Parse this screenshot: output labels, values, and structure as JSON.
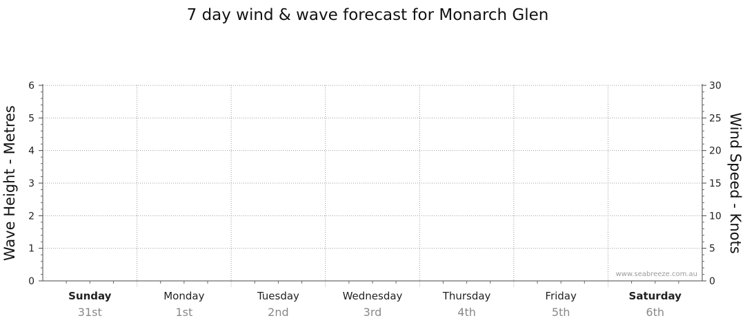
{
  "chart_data": {
    "type": "line",
    "title": "7 day wind & wave forecast for Monarch Glen",
    "ylabel_left": "Wave Height - Metres",
    "ylabel_right": "Wind Speed - Knots",
    "ylim_left": [
      0,
      6
    ],
    "ylim_right": [
      0,
      30
    ],
    "yticks_left": [
      "0",
      "1",
      "2",
      "3",
      "4",
      "5",
      "6"
    ],
    "yticks_right": [
      "0",
      "5",
      "10",
      "15",
      "20",
      "25",
      "30"
    ],
    "grid": true,
    "days": [
      {
        "name": "Sunday",
        "date": "31st",
        "bold": true
      },
      {
        "name": "Monday",
        "date": "1st",
        "bold": false
      },
      {
        "name": "Tuesday",
        "date": "2nd",
        "bold": false
      },
      {
        "name": "Wednesday",
        "date": "3rd",
        "bold": false
      },
      {
        "name": "Thursday",
        "date": "4th",
        "bold": false
      },
      {
        "name": "Friday",
        "date": "5th",
        "bold": false
      },
      {
        "name": "Saturday",
        "date": "6th",
        "bold": true
      }
    ],
    "series": [],
    "watermark": "www.seabreeze.com.au"
  }
}
